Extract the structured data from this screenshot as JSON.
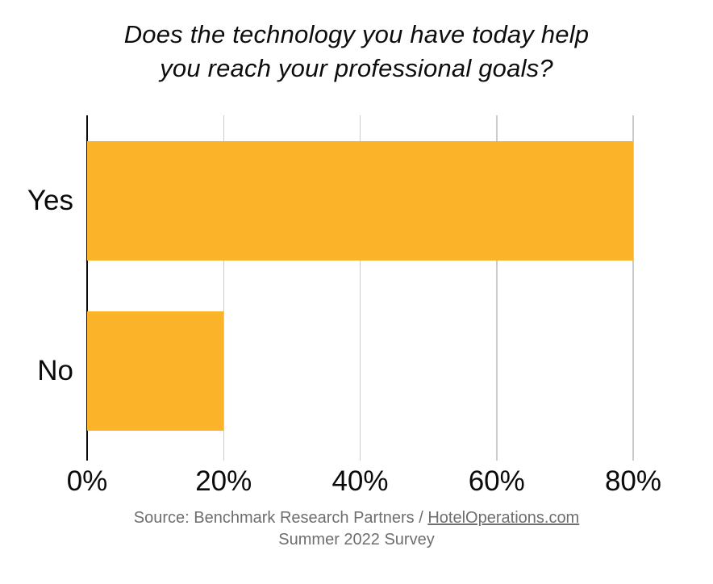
{
  "chart_title": {
    "line1": "Does the technology you have today help",
    "line2": "you reach your professional goals?"
  },
  "chart_data": {
    "type": "bar",
    "orientation": "horizontal",
    "title": "Does the technology you have today help you reach your professional goals?",
    "categories": [
      "Yes",
      "No"
    ],
    "values": [
      80,
      20
    ],
    "value_unit": "%",
    "xlabel": "",
    "ylabel": "",
    "xlim": [
      0,
      80
    ],
    "x_ticks": [
      {
        "value": 0,
        "label": "0%"
      },
      {
        "value": 20,
        "label": "20%"
      },
      {
        "value": 40,
        "label": "40%"
      },
      {
        "value": 60,
        "label": "60%"
      },
      {
        "value": 80,
        "label": "80%"
      }
    ],
    "grid": "vertical-gridlines-on",
    "legend": "none",
    "bar_color": "#FBB42A",
    "gridline_color": "#CBCBCB",
    "axis_color": "#0A0A0A"
  },
  "source": {
    "prefix": "Source: Benchmark Research Partners / ",
    "link_text": "HotelOperations.com",
    "line2": "Summer 2022 Survey",
    "text_color": "#6E6E6E"
  }
}
